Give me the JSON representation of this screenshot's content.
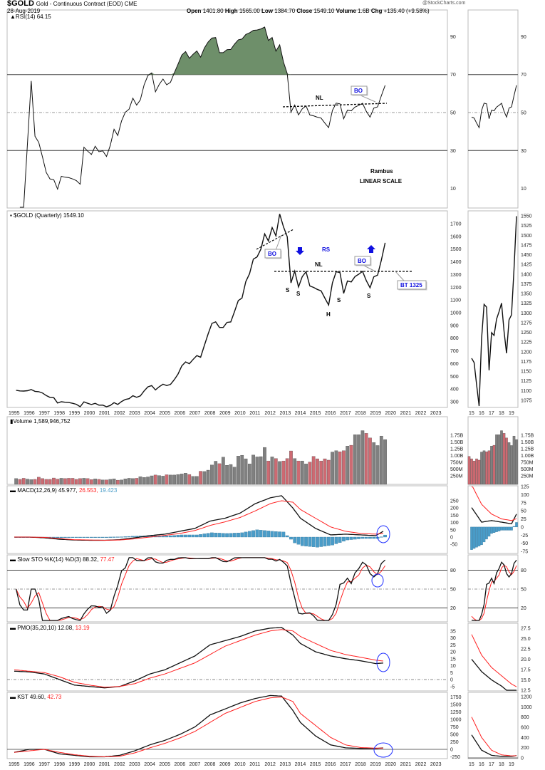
{
  "header": {
    "symbol": "$GOLD",
    "name": "Gold - Continuous Contract (EOD) CME",
    "date": "28-Aug-2019",
    "watermark": "@StockCharts.com",
    "open_label": "Open",
    "open": "1401.80",
    "high_label": "High",
    "high": "1565.00",
    "low_label": "Low",
    "low": "1384.70",
    "close_label": "Close",
    "close": "1549.10",
    "volume_label": "Volume",
    "volume": "1.6B",
    "chg_label": "Chg",
    "chg": "+135.40 (+9.58%)"
  },
  "colors": {
    "rsi_fill": "#6e8f6a",
    "up_bar": "#808080",
    "down_bar": "#cd6a72",
    "signal": "#ff2020",
    "hist": "#4a9cc8",
    "circle": "#2030ff",
    "annotation_blue": "#1010e0"
  },
  "annotations": {
    "rsi_nl": "NL",
    "rsi_bo": "BO",
    "rambus": "Rambus",
    "linear_scale": "LINEAR SCALE",
    "bo1": "BO",
    "bo2": "BO",
    "rs": "RS",
    "nl": "NL",
    "bt": "BT 1325",
    "s1": "S",
    "s2": "S",
    "h": "H",
    "s3": "S",
    "s4": "S"
  },
  "chart_data": [
    {
      "type": "line",
      "title": "$GOLD (Quarterly) 1549.10",
      "panel": "price",
      "x_start": "1995Q1",
      "frequency": "quarterly",
      "values": [
        390,
        385,
        384,
        387,
        396,
        382,
        379,
        369,
        349,
        334,
        332,
        290,
        300,
        296,
        294,
        288,
        280,
        261,
        299,
        288,
        278,
        288,
        273,
        274,
        258,
        271,
        293,
        279,
        302,
        318,
        324,
        347,
        335,
        346,
        385,
        417,
        427,
        393,
        418,
        438,
        427,
        436,
        473,
        518,
        582,
        613,
        599,
        632,
        663,
        650,
        743,
        834,
        916,
        928,
        884,
        884,
        924,
        927,
        1009,
        1096,
        1115,
        1244,
        1307,
        1421,
        1439,
        1500,
        1620,
        1564,
        1669,
        1604,
        1776,
        1675,
        1597,
        1234,
        1327,
        1202,
        1284,
        1322,
        1210,
        1199,
        1183,
        1172,
        1115,
        1060,
        1234,
        1322,
        1315,
        1152,
        1249,
        1242,
        1284,
        1303,
        1325,
        1253,
        1196,
        1282,
        1295,
        1413,
        1549
      ],
      "yticks": [
        300,
        400,
        500,
        600,
        700,
        800,
        900,
        1000,
        1100,
        1200,
        1300,
        1400,
        1500,
        1600,
        1700
      ],
      "mini_yticks": [
        1075,
        1100,
        1125,
        1150,
        1175,
        1200,
        1225,
        1250,
        1275,
        1300,
        1325,
        1350,
        1375,
        1400,
        1425,
        1450,
        1475,
        1500,
        1525,
        1550
      ],
      "neckline": 1325
    },
    {
      "type": "bar",
      "title": "Volume 1,589,946,752",
      "panel": "volume",
      "units": "millions",
      "values": [
        150,
        120,
        160,
        130,
        110,
        120,
        200,
        150,
        120,
        120,
        170,
        130,
        160,
        150,
        160,
        160,
        120,
        150,
        160,
        150,
        110,
        140,
        120,
        100,
        100,
        120,
        140,
        90,
        100,
        140,
        160,
        150,
        160,
        220,
        190,
        210,
        250,
        280,
        260,
        240,
        290,
        280,
        280,
        300,
        320,
        350,
        300,
        230,
        230,
        420,
        410,
        460,
        650,
        790,
        700,
        940,
        640,
        670,
        570,
        980,
        1010,
        880,
        690,
        1020,
        950,
        960,
        1300,
        800,
        950,
        890,
        780,
        800,
        890,
        1170,
        890,
        800,
        800,
        690,
        760,
        970,
        880,
        800,
        880,
        830,
        1130,
        1180,
        1140,
        1180,
        1350,
        1380,
        1770,
        1770,
        1920,
        1820,
        1650,
        1480,
        1370,
        1720,
        1590
      ],
      "yticks": [
        "250M",
        "500M",
        "750M",
        "1.00B",
        "1.25B",
        "1.50B",
        "1.75B"
      ]
    },
    {
      "type": "line",
      "title": "RSI(14) 64.15",
      "panel": "rsi",
      "yticks": [
        10,
        30,
        50,
        70,
        90
      ],
      "levels": [
        30,
        50,
        70
      ]
    },
    {
      "type": "line",
      "panel": "macd",
      "title": "MACD(12,26,9) 45.977",
      "signal_label": "26.553",
      "hist_label": "19.423",
      "x": [
        1995,
        1996,
        1997,
        1998,
        1999,
        2000,
        2001,
        2002,
        2003,
        2004,
        2005,
        2006,
        2007,
        2008,
        2009,
        2010,
        2011,
        2012,
        2012.75,
        2013.5,
        2014,
        2015,
        2016,
        2017,
        2018,
        2019,
        2019.6
      ],
      "series": [
        {
          "name": "MACD",
          "values": [
            0,
            0,
            -5,
            -15,
            -20,
            -22,
            -22,
            -18,
            -5,
            10,
            20,
            40,
            60,
            110,
            130,
            165,
            230,
            270,
            285,
            200,
            130,
            60,
            15,
            20,
            15,
            10,
            46
          ]
        },
        {
          "name": "Signal",
          "values": [
            0,
            0,
            -2,
            -10,
            -18,
            -20,
            -22,
            -20,
            -12,
            0,
            12,
            25,
            45,
            80,
            105,
            135,
            180,
            230,
            250,
            240,
            190,
            130,
            70,
            40,
            25,
            20,
            27
          ]
        }
      ],
      "yticks": [
        -50,
        0,
        50,
        100,
        150,
        200,
        250
      ],
      "mini_yticks": [
        -75,
        -50,
        -25,
        0,
        25,
        50,
        75,
        100,
        125
      ]
    },
    {
      "type": "line",
      "panel": "sto",
      "title": "Slow STO %K(14) %D(3) 88.32",
      "signal_label": "77.47",
      "yticks": [
        20,
        50,
        80
      ]
    },
    {
      "type": "line",
      "panel": "pmo",
      "title": "PMO(35,20,10) 12.08",
      "signal_label": "13.19",
      "x": [
        1995,
        1996,
        1997,
        1998,
        1999,
        2000,
        2001,
        2002,
        2003,
        2004,
        2005,
        2006,
        2007,
        2008,
        2009,
        2010,
        2011,
        2012,
        2012.75,
        2013.5,
        2014,
        2015,
        2016,
        2017,
        2018,
        2019,
        2019.6
      ],
      "series": [
        {
          "name": "PMO",
          "values": [
            6,
            5.5,
            4,
            0,
            -4,
            -5,
            -6,
            -5,
            -1,
            4,
            7,
            12,
            17,
            25,
            28,
            31,
            35,
            37,
            37.5,
            32,
            26,
            20,
            17,
            15,
            13.5,
            11.5,
            12
          ]
        },
        {
          "name": "Signal",
          "values": [
            7,
            6,
            5,
            2,
            -2,
            -4,
            -5.5,
            -5,
            -3,
            1,
            4,
            8,
            12,
            18,
            24,
            28,
            32,
            35,
            36,
            35,
            31,
            26,
            21,
            18,
            16,
            14,
            13.2
          ]
        }
      ],
      "yticks": [
        -5,
        0,
        5,
        10,
        15,
        20,
        25,
        30,
        35
      ],
      "mini_yticks": [
        "12.5",
        "15.0",
        "17.5",
        "20.0",
        "22.5",
        "25.0",
        "27.5"
      ]
    },
    {
      "type": "line",
      "panel": "kst",
      "title": "KST 49.60",
      "signal_label": "42.73",
      "x": [
        1995,
        1996,
        1997,
        1998,
        1999,
        2000,
        2001,
        2002,
        2003,
        2004,
        2005,
        2006,
        2007,
        2008,
        2009,
        2010,
        2011,
        2012,
        2012.75,
        2013.5,
        2014,
        2015,
        2016,
        2017,
        2018,
        2019,
        2019.6
      ],
      "series": [
        {
          "name": "KST",
          "values": [
            -100,
            0,
            0,
            -150,
            -200,
            -250,
            -250,
            -200,
            -50,
            150,
            300,
            500,
            750,
            1150,
            1350,
            1550,
            1700,
            1800,
            1780,
            1300,
            900,
            450,
            150,
            50,
            30,
            30,
            50
          ]
        },
        {
          "name": "Signal",
          "values": [
            -100,
            -50,
            0,
            -100,
            -180,
            -230,
            -250,
            -230,
            -120,
            50,
            200,
            380,
            600,
            900,
            1200,
            1400,
            1600,
            1720,
            1750,
            1600,
            1200,
            800,
            400,
            150,
            60,
            40,
            43
          ]
        }
      ],
      "yticks": [
        -250,
        0,
        250,
        500,
        750,
        1000,
        1250,
        1500,
        1750
      ],
      "mini_yticks": [
        0,
        200,
        400,
        600,
        800,
        1000,
        1200
      ]
    }
  ],
  "x_axis": {
    "years": [
      "1995",
      "1996",
      "1997",
      "1998",
      "1999",
      "2000",
      "2001",
      "2002",
      "2003",
      "2004",
      "2005",
      "2006",
      "2007",
      "2008",
      "2009",
      "2010",
      "2011",
      "2012",
      "2013",
      "2014",
      "2015",
      "2016",
      "2017",
      "2018",
      "2019",
      "2020",
      "2021",
      "2022",
      "2023"
    ],
    "mini_years": [
      "15",
      "16",
      "17",
      "18",
      "19"
    ]
  }
}
